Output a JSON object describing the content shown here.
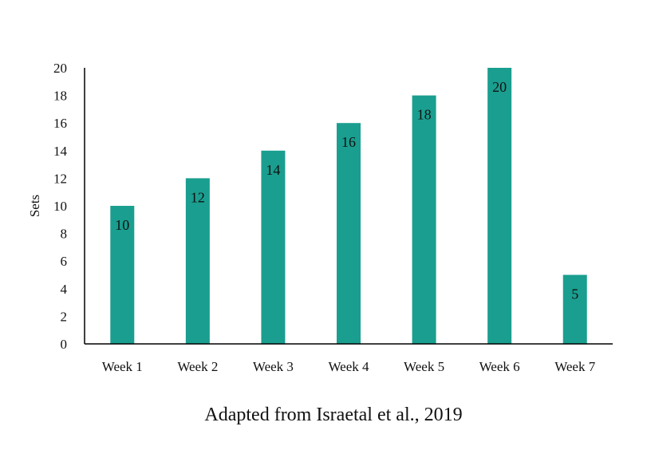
{
  "chart_data": {
    "type": "bar",
    "title": "",
    "xlabel": "",
    "ylabel": "Sets",
    "categories": [
      "Week 1",
      "Week 2",
      "Week 3",
      "Week 4",
      "Week 5",
      "Week 6",
      "Week 7"
    ],
    "values": [
      10,
      12,
      14,
      16,
      18,
      20,
      5
    ],
    "data_labels": [
      "10",
      "12",
      "14",
      "16",
      "18",
      "20",
      "5"
    ],
    "ylim": [
      0,
      20
    ],
    "yticks": [
      "0",
      "2",
      "4",
      "6",
      "8",
      "10",
      "12",
      "14",
      "16",
      "18",
      "20"
    ],
    "grid": false,
    "legend": "none",
    "bar_color": "#1a9e8f",
    "caption": "Adapted from Israetal et al., 2019"
  }
}
